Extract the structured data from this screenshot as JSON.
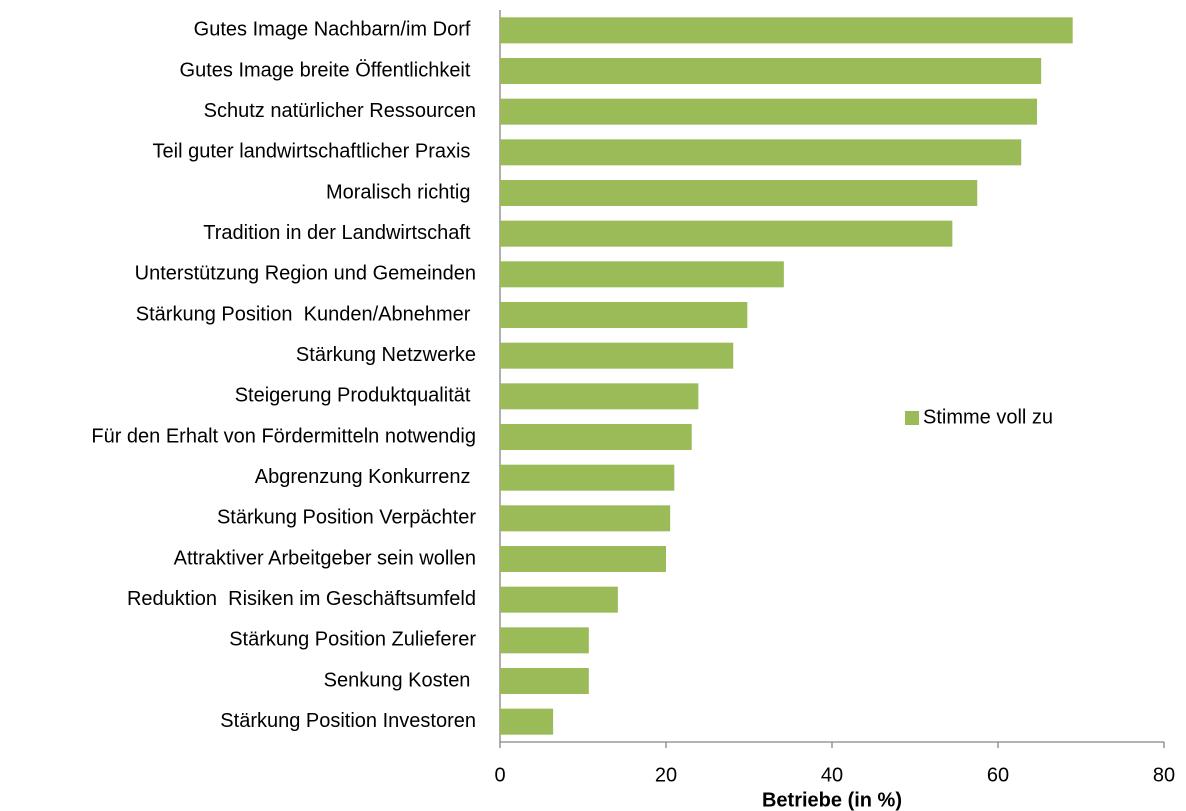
{
  "chart_data": {
    "type": "hbar",
    "categories": [
      "Gutes Image Nachbarn/im Dorf ",
      "Gutes Image breite Öffentlichkeit ",
      "Schutz natürlicher Ressourcen",
      "Teil guter landwirtschaftlicher Praxis ",
      "Moralisch richtig ",
      "Tradition in der Landwirtschaft ",
      "Unterstützung Region und Gemeinden",
      "Stärkung Position  Kunden/Abnehmer ",
      "Stärkung Netzwerke",
      "Steigerung Produktqualität ",
      "Für den Erhalt von Fördermitteln notwendig",
      "Abgrenzung Konkurrenz ",
      "Stärkung Position Verpächter",
      "Attraktiver Arbeitgeber sein wollen",
      "Reduktion  Risiken im Geschäftsumfeld",
      "Stärkung Position Zulieferer",
      "Senkung Kosten ",
      "Stärkung Position Investoren"
    ],
    "series": [
      {
        "name": "Stimme voll zu",
        "color": "#9bbb59",
        "values": [
          69.0,
          65.2,
          64.7,
          62.8,
          57.5,
          54.5,
          34.2,
          29.8,
          28.1,
          23.9,
          23.1,
          21.0,
          20.5,
          20.0,
          14.2,
          10.7,
          10.7,
          6.4
        ]
      }
    ],
    "x_label": "Betriebe (in %)",
    "xlim": [
      0,
      80
    ],
    "xticks": [
      0,
      20,
      40,
      60,
      80
    ],
    "legend": "right"
  }
}
